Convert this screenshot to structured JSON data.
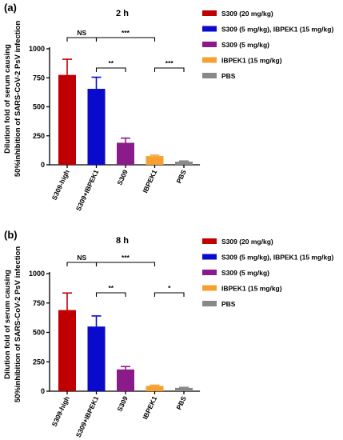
{
  "colors": {
    "S309-high": "#c00000",
    "S309+IBPEK1": "#0a0acc",
    "S309": "#8b1a8b",
    "IBPEK1": "#f5a030",
    "PBS": "#888888"
  },
  "ylabel_line1": "Dilution fold of serum causing",
  "ylabel_line2": "50%inhibition of SARS-CoV-2 PsV infection",
  "chart_data": [
    {
      "panel": "(a)",
      "type": "bar",
      "title": "2 h",
      "categories": [
        "S309-high",
        "S309+IBPEK1",
        "S309",
        "IBPEK1",
        "PBS"
      ],
      "values": [
        775,
        655,
        190,
        75,
        27
      ],
      "errors": [
        135,
        100,
        40,
        8,
        6
      ],
      "ylim": [
        0,
        1000
      ],
      "yticks": [
        "0",
        "250",
        "500",
        "750",
        "1000"
      ],
      "legend": [
        "S309 (20 mg/kg)",
        "S309 (5 mg/kg), IBPEK1 (15 mg/kg)",
        "S309 (5 mg/kg)",
        "IBPEK1 (15 mg/kg)",
        "PBS"
      ],
      "significance": [
        {
          "from": 0,
          "to": 1,
          "label": "NS"
        },
        {
          "from": 1,
          "to": 3,
          "label": "***"
        },
        {
          "from": 1,
          "to": 2,
          "label": "**"
        },
        {
          "from": 3,
          "to": 4,
          "label": "***"
        }
      ]
    },
    {
      "panel": "(b)",
      "type": "bar",
      "title": "8 h",
      "categories": [
        "S309-high",
        "S309+IBPEK1",
        "S309",
        "IBPEK1",
        "PBS"
      ],
      "values": [
        690,
        550,
        185,
        45,
        28
      ],
      "errors": [
        145,
        90,
        25,
        6,
        5
      ],
      "ylim": [
        0,
        1000
      ],
      "yticks": [
        "0",
        "250",
        "500",
        "750",
        "1000"
      ],
      "legend": [
        "S309 (20 mg/kg)",
        "S309 (5 mg/kg), IBPEK1 (15 mg/kg)",
        "S309 (5 mg/kg)",
        "IBPEK1 (15 mg/kg)",
        "PBS"
      ],
      "significance": [
        {
          "from": 0,
          "to": 1,
          "label": "NS"
        },
        {
          "from": 1,
          "to": 3,
          "label": "***"
        },
        {
          "from": 1,
          "to": 2,
          "label": "**"
        },
        {
          "from": 3,
          "to": 4,
          "label": "*"
        }
      ]
    }
  ]
}
